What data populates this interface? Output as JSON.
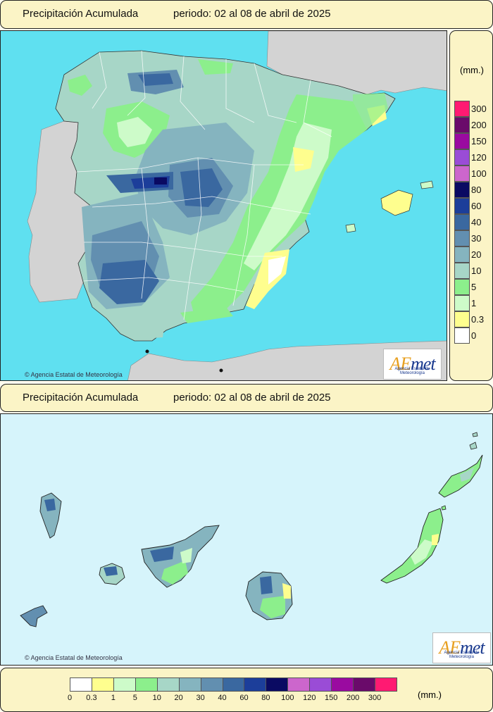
{
  "header_top": {
    "title": "Precipitación Acumulada",
    "period": "periodo: 02 al 08 de abril de 2025"
  },
  "header_bottom": {
    "title": "Precipitación Acumulada",
    "period": "periodo: 02 al 08 de abril de 2025"
  },
  "credit_text": "Agencia Estatal de Meteorología",
  "logo": {
    "brand_a": "AE",
    "brand_b": "met",
    "subtitle": "Agencia Estatal de Meteorología"
  },
  "legend": {
    "unit": "(mm.)",
    "classes": [
      {
        "label": "0",
        "color": "#ffffff"
      },
      {
        "label": "0.3",
        "color": "#fefe8e"
      },
      {
        "label": "1",
        "color": "#cdfbc9"
      },
      {
        "label": "5",
        "color": "#8cef8c"
      },
      {
        "label": "10",
        "color": "#a7d6c7"
      },
      {
        "label": "20",
        "color": "#85b4bf"
      },
      {
        "label": "30",
        "color": "#628fb0"
      },
      {
        "label": "40",
        "color": "#3a68a0"
      },
      {
        "label": "60",
        "color": "#1c3e9a"
      },
      {
        "label": "80",
        "color": "#0a0a62"
      },
      {
        "label": "100",
        "color": "#cc66cc"
      },
      {
        "label": "120",
        "color": "#9a4cd6"
      },
      {
        "label": "150",
        "color": "#9a0aa0"
      },
      {
        "label": "200",
        "color": "#6a0a6a"
      },
      {
        "label": "300",
        "color": "#ff1a72"
      }
    ]
  },
  "colors": {
    "sea": "#5fe0f0",
    "sea_canarias": "#d6f4fb",
    "foreign_land": "#d3d3d3",
    "panel": "#fbf4c6"
  }
}
